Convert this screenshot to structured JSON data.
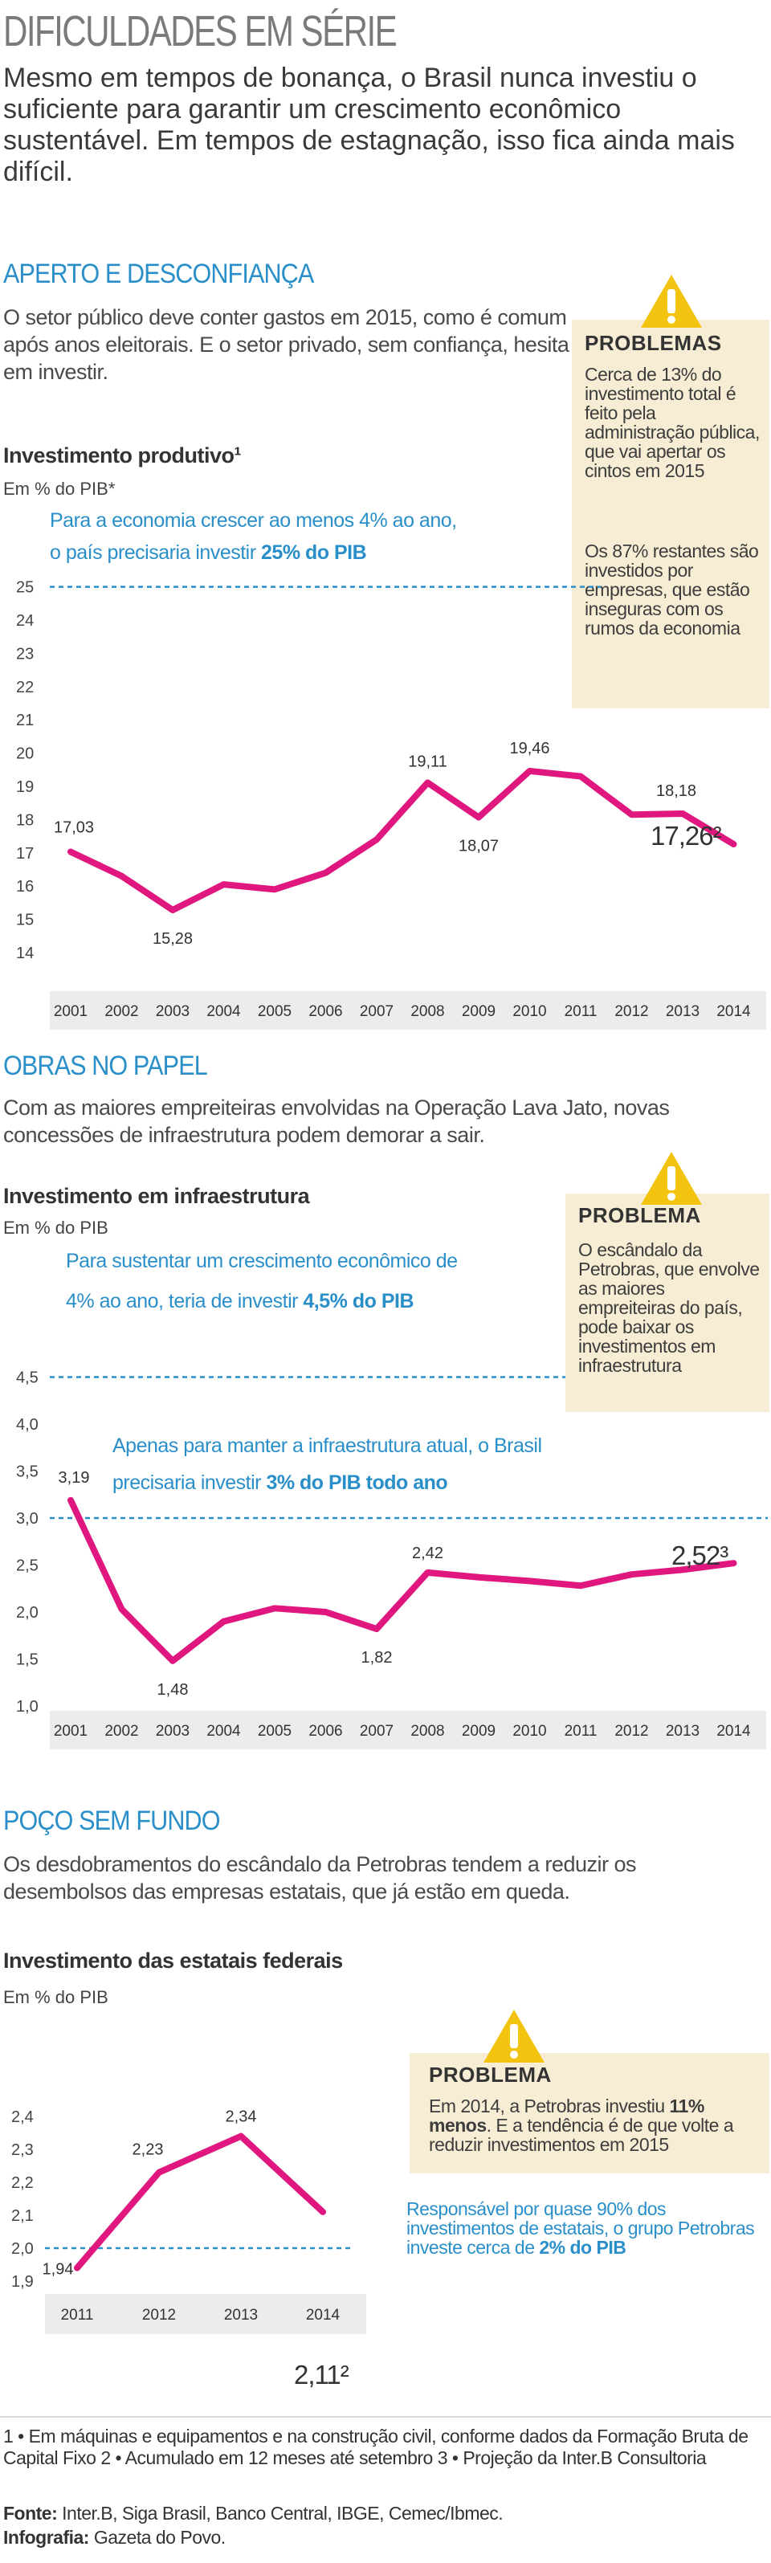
{
  "header": {
    "title": "DIFICULDADES EM SÉRIE",
    "intro": "Mesmo em tempos de bonança, o Brasil nunca investiu o suficiente para garantir um crescimento econômico sustentável. Em tempos de estagnação, isso fica ainda mais difícil."
  },
  "colors": {
    "accent": "#2a8fc9",
    "line": "#e0177f",
    "box": "#f6edd4",
    "warning": "#f2c40f"
  },
  "section1": {
    "title": "APERTO E DESCONFIANÇA",
    "text": "O setor público deve conter gastos em 2015, como é comum após anos eleitorais. E o setor privado, sem confiança, hesita em investir.",
    "box": {
      "icon": "warning-icon",
      "title": "PROBLEMAS",
      "p1": "Cerca de 13% do investimento total é feito pela administração pública, que vai apertar os cintos em 2015",
      "p2": "Os 87% restantes são investidos por empresas, que estão inseguras com os rumos da economia"
    },
    "chart_title": "Investimento produtivo¹",
    "chart_subtitle": "Em % do PIB*",
    "ref_line_text_1": "Para a economia crescer ao menos 4% ao ano,",
    "ref_line_text_2a": "o país precisaria investir ",
    "ref_line_text_2b": "25% do PIB",
    "last_label": "17,26²"
  },
  "section2": {
    "title": "OBRAS NO PAPEL",
    "text": "Com as maiores empreiteiras envolvidas na Operação Lava Jato, novas concessões de infraestrutura podem demorar a sair.",
    "box": {
      "icon": "warning-icon",
      "title": "PROBLEMA",
      "p1": "O escândalo da Petrobras, que envolve as maiores empreiteiras do país, pode baixar os investimentos em infraestrutura"
    },
    "chart_title": "Investimento em infraestrutura",
    "chart_subtitle": "Em % do PIB",
    "ref1_text_1": "Para sustentar um crescimento econômico de",
    "ref1_text_2a": "4% ao ano, teria de investir ",
    "ref1_text_2b": "4,5% do PIB",
    "ref2_text_1": "Apenas para manter a infraestrutura atual, o Brasil",
    "ref2_text_2a": "precisaria investir ",
    "ref2_text_2b": "3% do PIB todo ano",
    "last_label": "2,52³"
  },
  "section3": {
    "title": "POÇO SEM FUNDO",
    "text": "Os desdobramentos do escândalo da Petrobras tendem a reduzir os desembolsos das empresas estatais, que já estão em queda.",
    "box": {
      "icon": "warning-icon",
      "title": "PROBLEMA",
      "p1a": "Em 2014, a Petrobras investiu ",
      "p1b": "11% menos",
      "p1c": ". E a tendência é de que volte a reduzir investimentos em 2015"
    },
    "note_a": "Responsável por quase 90% dos investimentos de estatais, o grupo Petrobras investe cerca de ",
    "note_b": "2% do PIB",
    "chart_title": "Investimento das estatais federais",
    "chart_subtitle": "Em % do PIB",
    "last_label": "2,11²"
  },
  "footer": {
    "note1": "1 • Em máquinas e equipamentos e na construção civil, conforme dados da Formação Bruta de Capital Fixo ",
    "note2": "2 • Acumulado em 12 meses até setembro ",
    "note3": "3 • Projeção da Inter.B Consultoria",
    "source_label": "Fonte:",
    "source": " Inter.B, Siga Brasil, Banco Central, IBGE, Cemec/Ibmec.",
    "credit_label": "Infografia:",
    "credit": " Gazeta do Povo."
  },
  "chart_data": [
    {
      "type": "line",
      "title": "Investimento produtivo¹",
      "ylabel": "Em % do PIB*",
      "categories": [
        "2001",
        "2002",
        "2003",
        "2004",
        "2005",
        "2006",
        "2007",
        "2008",
        "2009",
        "2010",
        "2011",
        "2012",
        "2013",
        "2014"
      ],
      "values": [
        17.03,
        16.3,
        15.28,
        16.05,
        15.9,
        16.4,
        17.4,
        19.11,
        18.07,
        19.46,
        19.3,
        18.15,
        18.18,
        17.26
      ],
      "point_labels": {
        "0": "17,03",
        "2": "15,28",
        "7": "19,11",
        "8": "18,07",
        "9": "19,46",
        "12": "18,18"
      },
      "y_ticks": [
        "14",
        "15",
        "16",
        "17",
        "18",
        "19",
        "20",
        "21",
        "22",
        "23",
        "24",
        "25"
      ],
      "ylim": [
        14,
        25
      ],
      "reference_line": 25,
      "grid": false
    },
    {
      "type": "line",
      "title": "Investimento em infraestrutura",
      "ylabel": "Em % do PIB",
      "categories": [
        "2001",
        "2002",
        "2003",
        "2004",
        "2005",
        "2006",
        "2007",
        "2008",
        "2009",
        "2010",
        "2011",
        "2012",
        "2013",
        "2014"
      ],
      "values": [
        3.19,
        2.03,
        1.48,
        1.9,
        2.04,
        2.0,
        1.82,
        2.42,
        2.37,
        2.33,
        2.28,
        2.4,
        2.45,
        2.52
      ],
      "point_labels": {
        "0": "3,19",
        "2": "1,48",
        "6": "1,82",
        "7": "2,42"
      },
      "y_ticks": [
        "1,0",
        "1,5",
        "2,0",
        "2,5",
        "3,0",
        "3,5",
        "4,0",
        "4,5"
      ],
      "ylim": [
        1.0,
        4.5
      ],
      "reference_lines": [
        4.5,
        3.0
      ],
      "grid": false
    },
    {
      "type": "line",
      "title": "Investimento das estatais federais",
      "ylabel": "Em % do PIB",
      "categories": [
        "2011",
        "2012",
        "2013",
        "2014"
      ],
      "values": [
        1.94,
        2.23,
        2.34,
        2.11
      ],
      "point_labels": {
        "0": "1,94",
        "1": "2,23",
        "2": "2,34"
      },
      "y_ticks": [
        "1,9",
        "2,0",
        "2,1",
        "2,2",
        "2,3",
        "2,4"
      ],
      "ylim": [
        1.9,
        2.4
      ],
      "reference_line": 2.0,
      "grid": false
    }
  ]
}
